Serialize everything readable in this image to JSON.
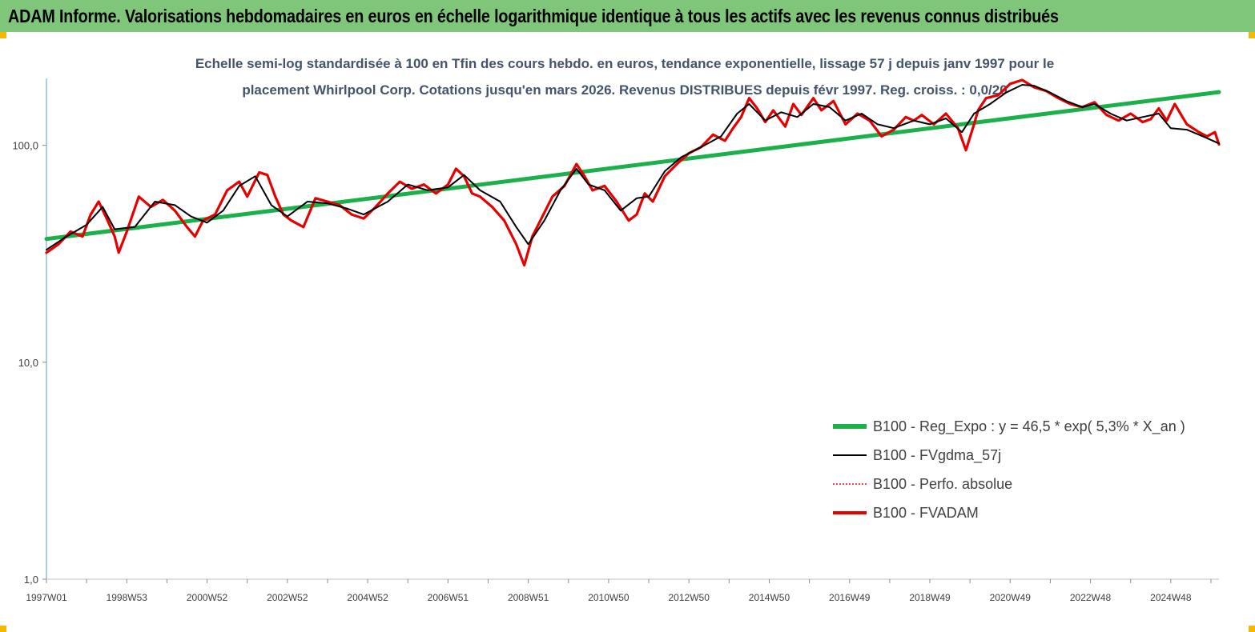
{
  "banner": {
    "title": "ADAM Informe. Valorisations hebdomadaires en euros en échelle logarithmique identique à tous les actifs avec les revenus connus distribués"
  },
  "colors": {
    "banner_bg": "#7fc67a",
    "corner_marks": "#f5b800",
    "trend": "#1bb04a",
    "smooth": "#000000",
    "perf": "#e01010",
    "fvadam": "#e60000",
    "axis": "#5b9bd5",
    "subtitle": "#44546a"
  },
  "chart_data": {
    "type": "line",
    "subtitle_line1": "Echelle semi-log standardisée à 100 en Tfin des cours hebdo. en euros, tendance exponentielle, lissage 57 j depuis janv 1997 pour le",
    "subtitle_line2": "placement Whirlpool Corp. Cotations jusqu'en mars 2026.  Revenus DISTRIBUES depuis févr 1997. Reg. croiss. : 0,0/20",
    "y_scale": "log",
    "ylim": [
      1,
      200
    ],
    "y_ticks": [
      "1,0",
      "10,0",
      "100,0"
    ],
    "y_tick_values": [
      1,
      10,
      100
    ],
    "xlim": [
      1997.0,
      2026.2
    ],
    "x_ticks": [
      "1997W01",
      "1998W53",
      "2000W52",
      "2002W52",
      "2004W52",
      "2006W51",
      "2008W51",
      "2010W50",
      "2012W50",
      "2014W50",
      "2016W49",
      "2018W49",
      "2020W49",
      "2022W48",
      "2024W48"
    ],
    "x_tick_values": [
      1997.0,
      1999.0,
      2001.0,
      2003.0,
      2005.0,
      2007.0,
      2009.0,
      2011.0,
      2013.0,
      2015.0,
      2017.0,
      2019.0,
      2021.0,
      2023.0,
      2025.0
    ],
    "grid": false,
    "legend_position": "right-lower",
    "series": [
      {
        "name": "B100 - Reg_Expo : y = 46,5 *  exp( 5,3% *   X_an )",
        "style": "thick-solid",
        "x": [
          1997.0,
          2026.2
        ],
        "y": [
          37,
          176
        ]
      },
      {
        "name": "B100 - FVgdma_57j",
        "style": "thin-solid",
        "x": [
          1997.0,
          1997.5,
          1998.0,
          1998.4,
          1998.7,
          1999.2,
          1999.7,
          2000.2,
          2000.6,
          2001.0,
          2001.4,
          2001.8,
          2002.2,
          2002.6,
          2003.0,
          2003.5,
          2004.0,
          2004.5,
          2004.9,
          2005.5,
          2006.0,
          2006.5,
          2007.0,
          2007.4,
          2007.8,
          2008.3,
          2008.7,
          2009.0,
          2009.4,
          2009.8,
          2010.2,
          2010.5,
          2010.9,
          2011.3,
          2011.7,
          2012.0,
          2012.4,
          2012.8,
          2013.3,
          2013.8,
          2014.2,
          2014.5,
          2014.9,
          2015.3,
          2015.7,
          2016.1,
          2016.5,
          2016.9,
          2017.3,
          2017.7,
          2018.1,
          2018.6,
          2019.0,
          2019.4,
          2019.8,
          2020.1,
          2020.5,
          2020.9,
          2021.3,
          2021.6,
          2022.0,
          2022.4,
          2022.8,
          2023.1,
          2023.5,
          2023.9,
          2024.3,
          2024.7,
          2025.0,
          2025.4,
          2025.8,
          2026.2
        ],
        "y": [
          33,
          38,
          43,
          52,
          41,
          42,
          55,
          53,
          47,
          44,
          50,
          65,
          72,
          53,
          47,
          55,
          54,
          51,
          48,
          55,
          66,
          62,
          64,
          73,
          62,
          55,
          42,
          35,
          45,
          62,
          78,
          66,
          62,
          50,
          57,
          58,
          76,
          88,
          98,
          110,
          140,
          155,
          130,
          142,
          135,
          155,
          150,
          130,
          140,
          125,
          120,
          130,
          125,
          133,
          115,
          140,
          155,
          175,
          190,
          188,
          175,
          160,
          150,
          155,
          140,
          130,
          135,
          140,
          120,
          118,
          110,
          102
        ]
      },
      {
        "name": "B100 - Perfo. absolue",
        "style": "dotted",
        "x": [],
        "y": []
      },
      {
        "name": "B100 - FVADAM",
        "style": "thick-solid",
        "x": [
          1997.0,
          1997.3,
          1997.6,
          1997.9,
          1998.1,
          1998.3,
          1998.5,
          1998.7,
          1998.8,
          1999.0,
          1999.3,
          1999.6,
          1999.9,
          2000.2,
          2000.5,
          2000.7,
          2000.9,
          2001.2,
          2001.5,
          2001.8,
          2002.0,
          2002.3,
          2002.5,
          2002.7,
          2002.9,
          2003.1,
          2003.4,
          2003.7,
          2004.0,
          2004.3,
          2004.6,
          2004.9,
          2005.2,
          2005.5,
          2005.8,
          2006.1,
          2006.4,
          2006.7,
          2007.0,
          2007.2,
          2007.4,
          2007.6,
          2007.8,
          2008.1,
          2008.4,
          2008.7,
          2008.9,
          2009.1,
          2009.3,
          2009.6,
          2009.9,
          2010.2,
          2010.4,
          2010.6,
          2010.9,
          2011.2,
          2011.5,
          2011.7,
          2011.9,
          2012.1,
          2012.4,
          2012.7,
          2013.0,
          2013.3,
          2013.6,
          2013.9,
          2014.1,
          2014.3,
          2014.5,
          2014.7,
          2014.9,
          2015.1,
          2015.4,
          2015.6,
          2015.8,
          2016.1,
          2016.3,
          2016.6,
          2016.9,
          2017.2,
          2017.5,
          2017.8,
          2018.1,
          2018.4,
          2018.6,
          2018.8,
          2019.1,
          2019.4,
          2019.7,
          2019.9,
          2020.1,
          2020.2,
          2020.4,
          2020.7,
          2021.0,
          2021.3,
          2021.6,
          2021.9,
          2022.2,
          2022.5,
          2022.8,
          2023.1,
          2023.4,
          2023.7,
          2024.0,
          2024.3,
          2024.5,
          2024.7,
          2024.9,
          2025.1,
          2025.4,
          2025.7,
          2025.9,
          2026.1,
          2026.2
        ],
        "y": [
          32,
          35,
          40,
          38,
          48,
          55,
          46,
          38,
          32,
          40,
          58,
          52,
          56,
          50,
          42,
          38,
          45,
          48,
          62,
          68,
          58,
          75,
          73,
          58,
          48,
          45,
          42,
          57,
          55,
          53,
          48,
          46,
          52,
          60,
          68,
          63,
          66,
          60,
          66,
          78,
          72,
          60,
          58,
          52,
          45,
          35,
          28,
          38,
          45,
          58,
          65,
          82,
          72,
          62,
          65,
          55,
          45,
          48,
          60,
          55,
          72,
          82,
          92,
          98,
          112,
          105,
          120,
          135,
          165,
          148,
          128,
          145,
          122,
          155,
          138,
          165,
          145,
          160,
          125,
          140,
          130,
          110,
          118,
          135,
          130,
          138,
          125,
          140,
          120,
          95,
          125,
          145,
          165,
          170,
          192,
          200,
          185,
          178,
          165,
          155,
          150,
          158,
          138,
          130,
          140,
          128,
          132,
          148,
          130,
          155,
          125,
          115,
          110,
          115,
          101
        ]
      }
    ]
  }
}
